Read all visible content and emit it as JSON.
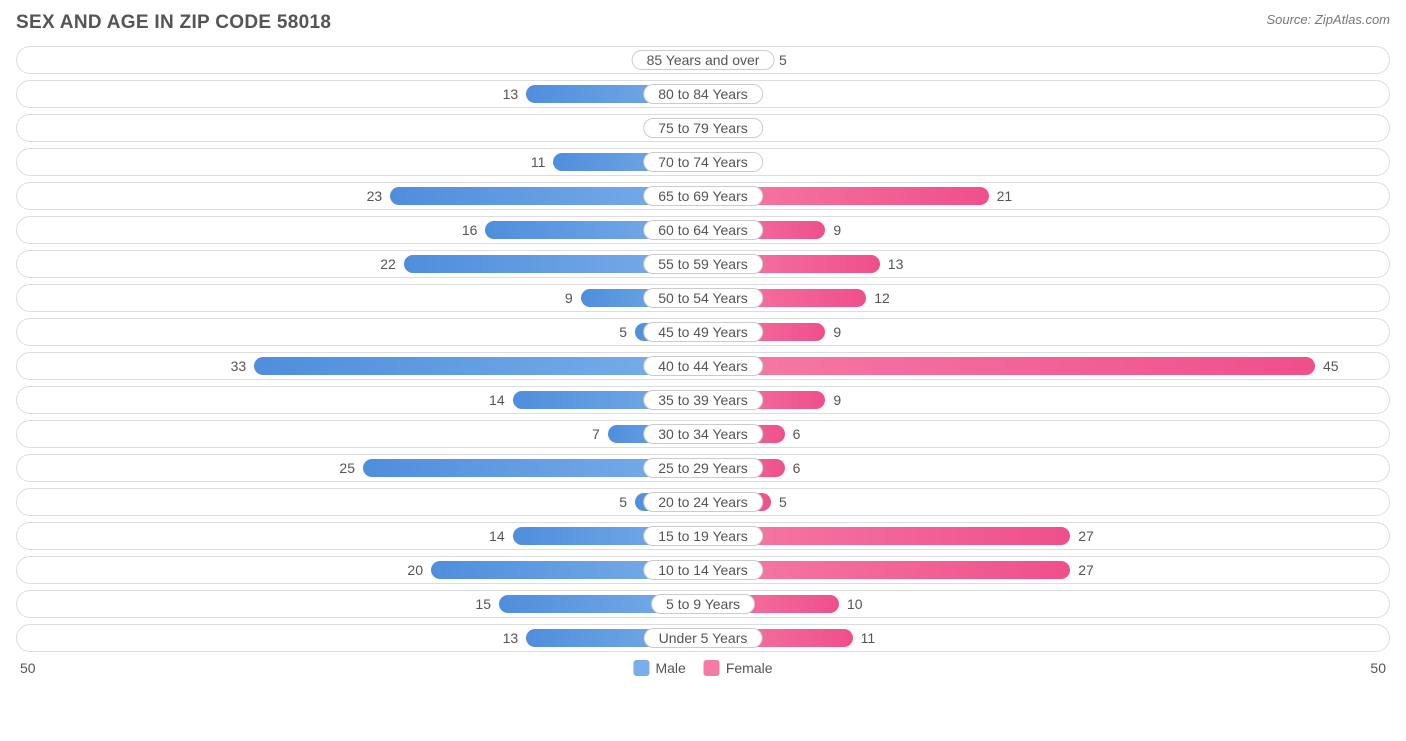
{
  "title": "SEX AND AGE IN ZIP CODE 58018",
  "source": "Source: ZipAtlas.com",
  "chart": {
    "type": "population-pyramid",
    "axis_max": 50,
    "axis_left_label": "50",
    "axis_right_label": "50",
    "colors": {
      "male_start": "#7aaee8",
      "male_end": "#4f8edc",
      "female_start": "#f57ba6",
      "female_end": "#ef4f8b",
      "row_border": "#dddddd",
      "label_border": "#cccccc",
      "text": "#555555",
      "background": "#ffffff"
    },
    "legend": {
      "male": "Male",
      "female": "Female"
    },
    "rows": [
      {
        "age": "85 Years and over",
        "male": 0,
        "female": 5
      },
      {
        "age": "80 to 84 Years",
        "male": 13,
        "female": 1
      },
      {
        "age": "75 to 79 Years",
        "male": 2,
        "female": 2
      },
      {
        "age": "70 to 74 Years",
        "male": 11,
        "female": 2
      },
      {
        "age": "65 to 69 Years",
        "male": 23,
        "female": 21
      },
      {
        "age": "60 to 64 Years",
        "male": 16,
        "female": 9
      },
      {
        "age": "55 to 59 Years",
        "male": 22,
        "female": 13
      },
      {
        "age": "50 to 54 Years",
        "male": 9,
        "female": 12
      },
      {
        "age": "45 to 49 Years",
        "male": 5,
        "female": 9
      },
      {
        "age": "40 to 44 Years",
        "male": 33,
        "female": 45
      },
      {
        "age": "35 to 39 Years",
        "male": 14,
        "female": 9
      },
      {
        "age": "30 to 34 Years",
        "male": 7,
        "female": 6
      },
      {
        "age": "25 to 29 Years",
        "male": 25,
        "female": 6
      },
      {
        "age": "20 to 24 Years",
        "male": 5,
        "female": 5
      },
      {
        "age": "15 to 19 Years",
        "male": 14,
        "female": 27
      },
      {
        "age": "10 to 14 Years",
        "male": 20,
        "female": 27
      },
      {
        "age": "5 to 9 Years",
        "male": 15,
        "female": 10
      },
      {
        "age": "Under 5 Years",
        "male": 13,
        "female": 11
      }
    ]
  }
}
